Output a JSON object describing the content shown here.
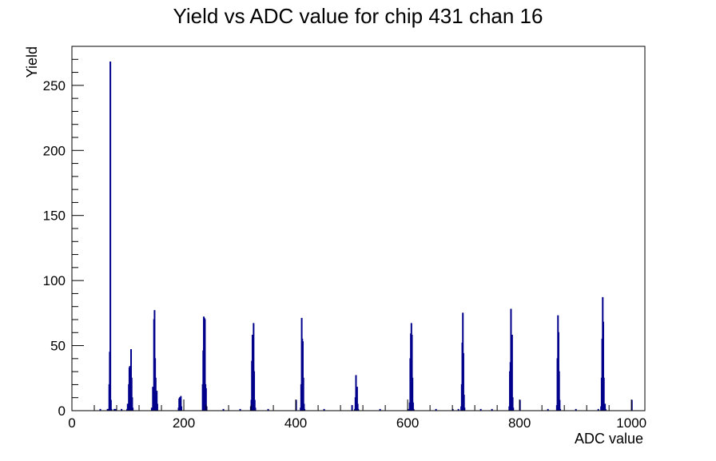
{
  "chart_data": {
    "type": "histogram",
    "title": "Yield vs ADC value for chip 431 chan 16",
    "xlabel": "ADC value",
    "ylabel": "Yield",
    "xlim": [
      0,
      1024
    ],
    "ylim": [
      0,
      280
    ],
    "x_ticks": [
      0,
      200,
      400,
      600,
      800,
      1000
    ],
    "y_ticks": [
      0,
      50,
      100,
      150,
      200,
      250
    ],
    "grid": false,
    "legend": "none",
    "line_color": "#00008b",
    "bins": [
      {
        "x": 50,
        "y": 1
      },
      {
        "x": 63,
        "y": 1
      },
      {
        "x": 65,
        "y": 1
      },
      {
        "x": 66,
        "y": 20
      },
      {
        "x": 67,
        "y": 45
      },
      {
        "x": 68,
        "y": 268
      },
      {
        "x": 69,
        "y": 8
      },
      {
        "x": 70,
        "y": 1
      },
      {
        "x": 75,
        "y": 1
      },
      {
        "x": 77,
        "y": 1
      },
      {
        "x": 88,
        "y": 1
      },
      {
        "x": 98,
        "y": 1
      },
      {
        "x": 99,
        "y": 5
      },
      {
        "x": 100,
        "y": 5
      },
      {
        "x": 101,
        "y": 20
      },
      {
        "x": 102,
        "y": 33
      },
      {
        "x": 103,
        "y": 34
      },
      {
        "x": 104,
        "y": 30
      },
      {
        "x": 105,
        "y": 47
      },
      {
        "x": 106,
        "y": 25
      },
      {
        "x": 107,
        "y": 10
      },
      {
        "x": 108,
        "y": 2
      },
      {
        "x": 142,
        "y": 2
      },
      {
        "x": 144,
        "y": 18
      },
      {
        "x": 145,
        "y": 12
      },
      {
        "x": 146,
        "y": 70
      },
      {
        "x": 147,
        "y": 77
      },
      {
        "x": 148,
        "y": 40
      },
      {
        "x": 149,
        "y": 25
      },
      {
        "x": 150,
        "y": 6
      },
      {
        "x": 151,
        "y": 15
      },
      {
        "x": 152,
        "y": 5
      },
      {
        "x": 190,
        "y": 2
      },
      {
        "x": 191,
        "y": 9
      },
      {
        "x": 192,
        "y": 10
      },
      {
        "x": 193,
        "y": 7
      },
      {
        "x": 194,
        "y": 11
      },
      {
        "x": 195,
        "y": 3
      },
      {
        "x": 233,
        "y": 20
      },
      {
        "x": 234,
        "y": 46
      },
      {
        "x": 235,
        "y": 72
      },
      {
        "x": 236,
        "y": 71
      },
      {
        "x": 237,
        "y": 70
      },
      {
        "x": 238,
        "y": 20
      },
      {
        "x": 239,
        "y": 17
      },
      {
        "x": 240,
        "y": 3
      },
      {
        "x": 270,
        "y": 1
      },
      {
        "x": 300,
        "y": 1
      },
      {
        "x": 319,
        "y": 3
      },
      {
        "x": 320,
        "y": 8
      },
      {
        "x": 321,
        "y": 38
      },
      {
        "x": 322,
        "y": 58
      },
      {
        "x": 323,
        "y": 48
      },
      {
        "x": 324,
        "y": 67
      },
      {
        "x": 325,
        "y": 30
      },
      {
        "x": 326,
        "y": 8
      },
      {
        "x": 327,
        "y": 2
      },
      {
        "x": 350,
        "y": 1
      },
      {
        "x": 400,
        "y": 8
      },
      {
        "x": 408,
        "y": 2
      },
      {
        "x": 409,
        "y": 20
      },
      {
        "x": 410,
        "y": 71
      },
      {
        "x": 411,
        "y": 55
      },
      {
        "x": 412,
        "y": 53
      },
      {
        "x": 413,
        "y": 25
      },
      {
        "x": 414,
        "y": 5
      },
      {
        "x": 415,
        "y": 1
      },
      {
        "x": 450,
        "y": 1
      },
      {
        "x": 500,
        "y": 4
      },
      {
        "x": 505,
        "y": 1
      },
      {
        "x": 506,
        "y": 10
      },
      {
        "x": 507,
        "y": 27
      },
      {
        "x": 508,
        "y": 16
      },
      {
        "x": 509,
        "y": 18
      },
      {
        "x": 510,
        "y": 5
      },
      {
        "x": 511,
        "y": 1
      },
      {
        "x": 550,
        "y": 1
      },
      {
        "x": 600,
        "y": 1
      },
      {
        "x": 603,
        "y": 6
      },
      {
        "x": 604,
        "y": 40
      },
      {
        "x": 605,
        "y": 59
      },
      {
        "x": 606,
        "y": 67
      },
      {
        "x": 607,
        "y": 58
      },
      {
        "x": 608,
        "y": 25
      },
      {
        "x": 609,
        "y": 6
      },
      {
        "x": 610,
        "y": 1
      },
      {
        "x": 650,
        "y": 1
      },
      {
        "x": 680,
        "y": 1
      },
      {
        "x": 690,
        "y": 1
      },
      {
        "x": 695,
        "y": 3
      },
      {
        "x": 696,
        "y": 20
      },
      {
        "x": 697,
        "y": 52
      },
      {
        "x": 698,
        "y": 75
      },
      {
        "x": 699,
        "y": 44
      },
      {
        "x": 700,
        "y": 12
      },
      {
        "x": 701,
        "y": 2
      },
      {
        "x": 730,
        "y": 1
      },
      {
        "x": 750,
        "y": 1
      },
      {
        "x": 781,
        "y": 3
      },
      {
        "x": 782,
        "y": 30
      },
      {
        "x": 783,
        "y": 37
      },
      {
        "x": 784,
        "y": 78
      },
      {
        "x": 785,
        "y": 20
      },
      {
        "x": 786,
        "y": 58
      },
      {
        "x": 787,
        "y": 10
      },
      {
        "x": 788,
        "y": 2
      },
      {
        "x": 800,
        "y": 8
      },
      {
        "x": 850,
        "y": 1
      },
      {
        "x": 866,
        "y": 4
      },
      {
        "x": 867,
        "y": 40
      },
      {
        "x": 868,
        "y": 73
      },
      {
        "x": 869,
        "y": 60
      },
      {
        "x": 870,
        "y": 30
      },
      {
        "x": 871,
        "y": 8
      },
      {
        "x": 872,
        "y": 1
      },
      {
        "x": 900,
        "y": 1
      },
      {
        "x": 940,
        "y": 1
      },
      {
        "x": 945,
        "y": 3
      },
      {
        "x": 946,
        "y": 25
      },
      {
        "x": 947,
        "y": 55
      },
      {
        "x": 948,
        "y": 87
      },
      {
        "x": 949,
        "y": 68
      },
      {
        "x": 950,
        "y": 25
      },
      {
        "x": 951,
        "y": 3
      },
      {
        "x": 952,
        "y": 5
      },
      {
        "x": 953,
        "y": 1
      },
      {
        "x": 1000,
        "y": 8
      }
    ]
  }
}
